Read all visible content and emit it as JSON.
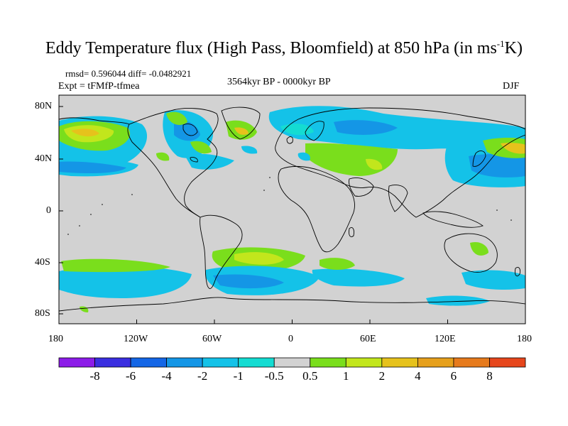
{
  "title": {
    "prefix": "Eddy Temperature flux (High Pass, Bloomfield) at 850 hPa (in ms",
    "superscript": "-1",
    "suffix": "K)"
  },
  "stats": "rmsd= 0.596044 diff= -0.0482921",
  "experiment": "Expt = tFMfP-tfmea",
  "period": "3564kyr BP - 0000kyr BP",
  "season": "DJF",
  "axes": {
    "x_ticks": [
      "180",
      "120W",
      "60W",
      "0",
      "60E",
      "120E",
      "180"
    ],
    "y_ticks": [
      "80N",
      "40N",
      "0",
      "40S",
      "80S"
    ]
  },
  "colorbar": {
    "colors": [
      "#8c1ce8",
      "#3a2ee0",
      "#1466e6",
      "#1496e6",
      "#14c2e8",
      "#14dcd2",
      "#d2d2d2",
      "#7ade1c",
      "#c2e61c",
      "#e6c21c",
      "#e6a01c",
      "#e67a1c",
      "#e6461c"
    ],
    "labels": [
      "-8",
      "-6",
      "-4",
      "-2",
      "-1",
      "-0.5",
      "0.5",
      "1",
      "2",
      "4",
      "6",
      "8"
    ]
  },
  "colors": {
    "land_background": "#d2d2d2",
    "coastline": "#000000"
  }
}
